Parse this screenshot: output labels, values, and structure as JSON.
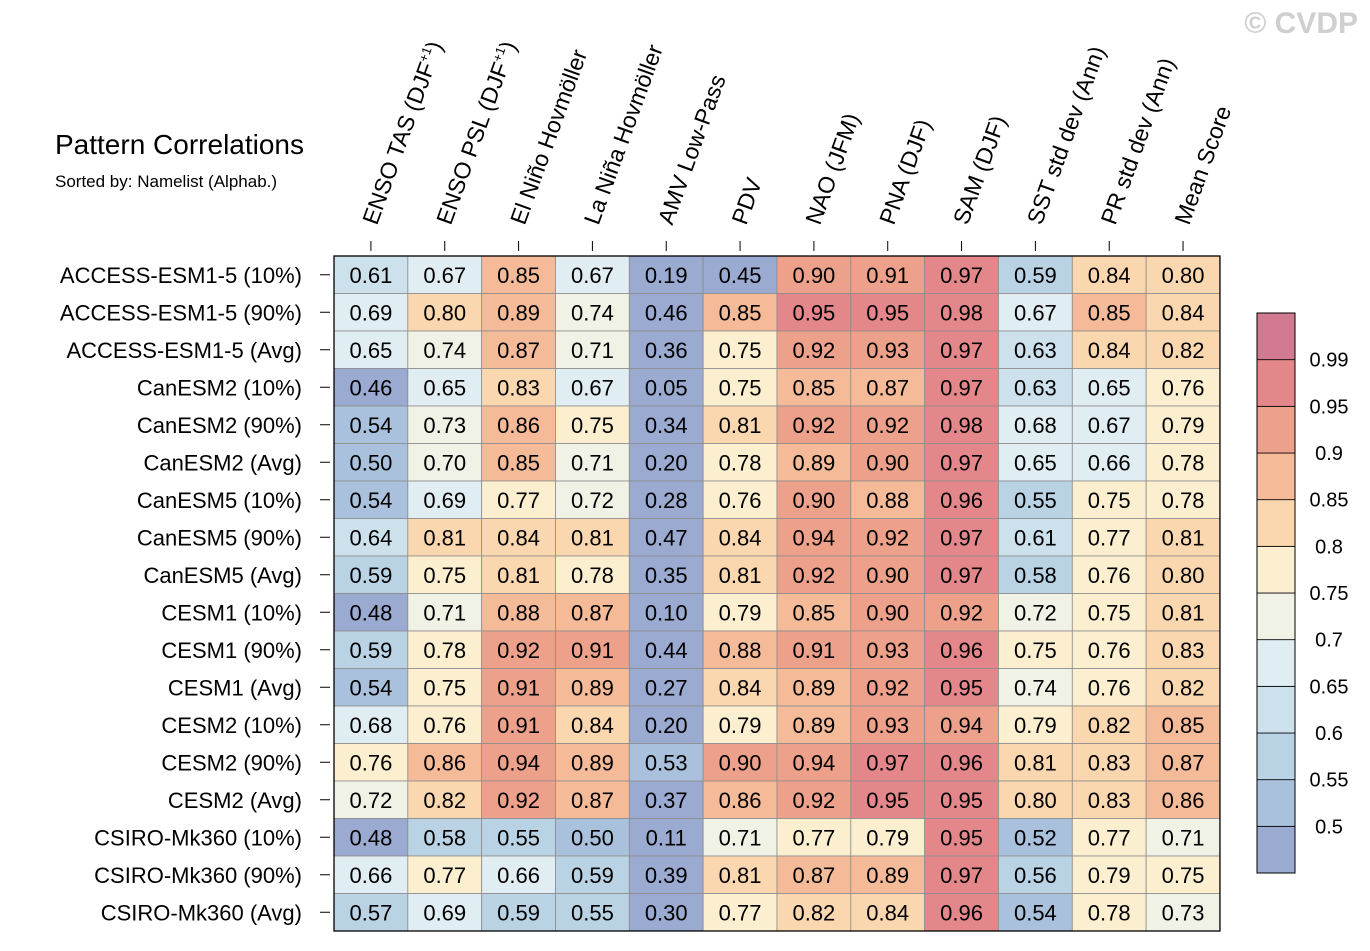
{
  "watermark": "© CVDP",
  "chart_data": {
    "type": "heatmap",
    "title": "Pattern Correlations",
    "subtitle": "Sorted by: Namelist (Alphab.)",
    "columns": [
      {
        "main": "ENSO TAS (DJF",
        "sup": "+1",
        "close": ")"
      },
      {
        "main": "ENSO PSL (DJF",
        "sup": "+1",
        "close": ")"
      },
      {
        "main": "El Niño Hovmöller",
        "sup": "",
        "close": ""
      },
      {
        "main": "La Niña Hovmöller",
        "sup": "",
        "close": ""
      },
      {
        "main": "AMV Low-Pass",
        "sup": "",
        "close": ""
      },
      {
        "main": "PDV",
        "sup": "",
        "close": ""
      },
      {
        "main": "NAO (JFM)",
        "sup": "",
        "close": ""
      },
      {
        "main": "PNA (DJF)",
        "sup": "",
        "close": ""
      },
      {
        "main": "SAM (DJF)",
        "sup": "",
        "close": ""
      },
      {
        "main": "SST std dev (Ann)",
        "sup": "",
        "close": ""
      },
      {
        "main": "PR std dev (Ann)",
        "sup": "",
        "close": ""
      },
      {
        "main": "Mean Score",
        "sup": "",
        "close": ""
      }
    ],
    "rows": [
      "ACCESS-ESM1-5 (10%)",
      "ACCESS-ESM1-5 (90%)",
      "ACCESS-ESM1-5 (Avg)",
      "CanESM2 (10%)",
      "CanESM2 (90%)",
      "CanESM2 (Avg)",
      "CanESM5 (10%)",
      "CanESM5 (90%)",
      "CanESM5 (Avg)",
      "CESM1 (10%)",
      "CESM1 (90%)",
      "CESM1 (Avg)",
      "CESM2 (10%)",
      "CESM2 (90%)",
      "CESM2 (Avg)",
      "CSIRO-Mk360 (10%)",
      "CSIRO-Mk360 (90%)",
      "CSIRO-Mk360 (Avg)"
    ],
    "values": [
      [
        "0.61",
        "0.67",
        "0.85",
        "0.67",
        "0.19",
        "0.45",
        "0.90",
        "0.91",
        "0.97",
        "0.59",
        "0.84",
        "0.80"
      ],
      [
        "0.69",
        "0.80",
        "0.89",
        "0.74",
        "0.46",
        "0.85",
        "0.95",
        "0.95",
        "0.98",
        "0.67",
        "0.85",
        "0.84"
      ],
      [
        "0.65",
        "0.74",
        "0.87",
        "0.71",
        "0.36",
        "0.75",
        "0.92",
        "0.93",
        "0.97",
        "0.63",
        "0.84",
        "0.82"
      ],
      [
        "0.46",
        "0.65",
        "0.83",
        "0.67",
        "0.05",
        "0.75",
        "0.85",
        "0.87",
        "0.97",
        "0.63",
        "0.65",
        "0.76"
      ],
      [
        "0.54",
        "0.73",
        "0.86",
        "0.75",
        "0.34",
        "0.81",
        "0.92",
        "0.92",
        "0.98",
        "0.68",
        "0.67",
        "0.79"
      ],
      [
        "0.50",
        "0.70",
        "0.85",
        "0.71",
        "0.20",
        "0.78",
        "0.89",
        "0.90",
        "0.97",
        "0.65",
        "0.66",
        "0.78"
      ],
      [
        "0.54",
        "0.69",
        "0.77",
        "0.72",
        "0.28",
        "0.76",
        "0.90",
        "0.88",
        "0.96",
        "0.55",
        "0.75",
        "0.78"
      ],
      [
        "0.64",
        "0.81",
        "0.84",
        "0.81",
        "0.47",
        "0.84",
        "0.94",
        "0.92",
        "0.97",
        "0.61",
        "0.77",
        "0.81"
      ],
      [
        "0.59",
        "0.75",
        "0.81",
        "0.78",
        "0.35",
        "0.81",
        "0.92",
        "0.90",
        "0.97",
        "0.58",
        "0.76",
        "0.80"
      ],
      [
        "0.48",
        "0.71",
        "0.88",
        "0.87",
        "0.10",
        "0.79",
        "0.85",
        "0.90",
        "0.92",
        "0.72",
        "0.75",
        "0.81"
      ],
      [
        "0.59",
        "0.78",
        "0.92",
        "0.91",
        "0.44",
        "0.88",
        "0.91",
        "0.93",
        "0.96",
        "0.75",
        "0.76",
        "0.83"
      ],
      [
        "0.54",
        "0.75",
        "0.91",
        "0.89",
        "0.27",
        "0.84",
        "0.89",
        "0.92",
        "0.95",
        "0.74",
        "0.76",
        "0.82"
      ],
      [
        "0.68",
        "0.76",
        "0.91",
        "0.84",
        "0.20",
        "0.79",
        "0.89",
        "0.93",
        "0.94",
        "0.79",
        "0.82",
        "0.85"
      ],
      [
        "0.76",
        "0.86",
        "0.94",
        "0.89",
        "0.53",
        "0.90",
        "0.94",
        "0.97",
        "0.96",
        "0.81",
        "0.83",
        "0.87"
      ],
      [
        "0.72",
        "0.82",
        "0.92",
        "0.87",
        "0.37",
        "0.86",
        "0.92",
        "0.95",
        "0.95",
        "0.80",
        "0.83",
        "0.86"
      ],
      [
        "0.48",
        "0.58",
        "0.55",
        "0.50",
        "0.11",
        "0.71",
        "0.77",
        "0.79",
        "0.95",
        "0.52",
        "0.77",
        "0.71"
      ],
      [
        "0.66",
        "0.77",
        "0.66",
        "0.59",
        "0.39",
        "0.81",
        "0.87",
        "0.89",
        "0.97",
        "0.56",
        "0.79",
        "0.75"
      ],
      [
        "0.57",
        "0.69",
        "0.59",
        "0.55",
        "0.30",
        "0.77",
        "0.82",
        "0.84",
        "0.96",
        "0.54",
        "0.78",
        "0.73"
      ]
    ],
    "colorbar": {
      "levels": [
        0.5,
        0.55,
        0.6,
        0.65,
        0.7,
        0.75,
        0.8,
        0.85,
        0.9,
        0.95,
        0.99
      ],
      "labels": [
        "0.5",
        "0.55",
        "0.6",
        "0.65",
        "0.7",
        "0.75",
        "0.8",
        "0.85",
        "0.9",
        "0.95",
        "0.99"
      ],
      "colors": [
        "#9aaad0",
        "#a9c1dc",
        "#bad3e4",
        "#cde1ec",
        "#e0edf2",
        "#f0f2e6",
        "#fcefd0",
        "#fbd7af",
        "#f5bb98",
        "#eea18a",
        "#e4878a",
        "#d27a92"
      ]
    }
  }
}
